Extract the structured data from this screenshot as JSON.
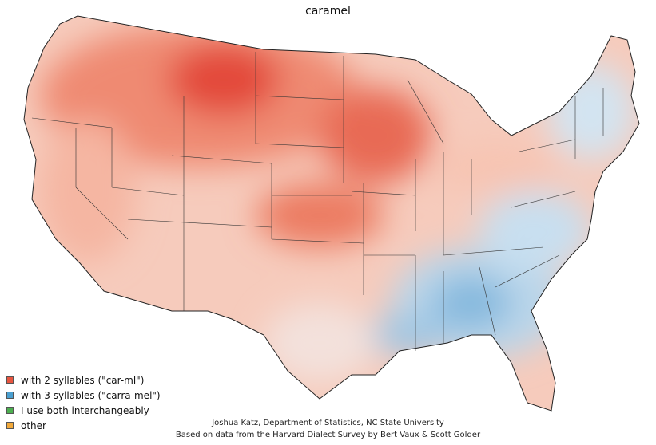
{
  "title": "caramel",
  "legend": [
    {
      "label": "with 2 syllables (\"car-ml\")",
      "color": "#e8553f"
    },
    {
      "label": "with 3 syllables (\"carra-mel\")",
      "color": "#4a9fd0"
    },
    {
      "label": "I use both interchangeably",
      "color": "#4caf50"
    },
    {
      "label": "other",
      "color": "#f2a93b"
    }
  ],
  "credits": {
    "line1": "Joshua Katz, Department of Statistics, NC State University",
    "line2": "Based on data from the Harvard Dialect Survey by Bert Vaux & Scott Golder"
  }
}
